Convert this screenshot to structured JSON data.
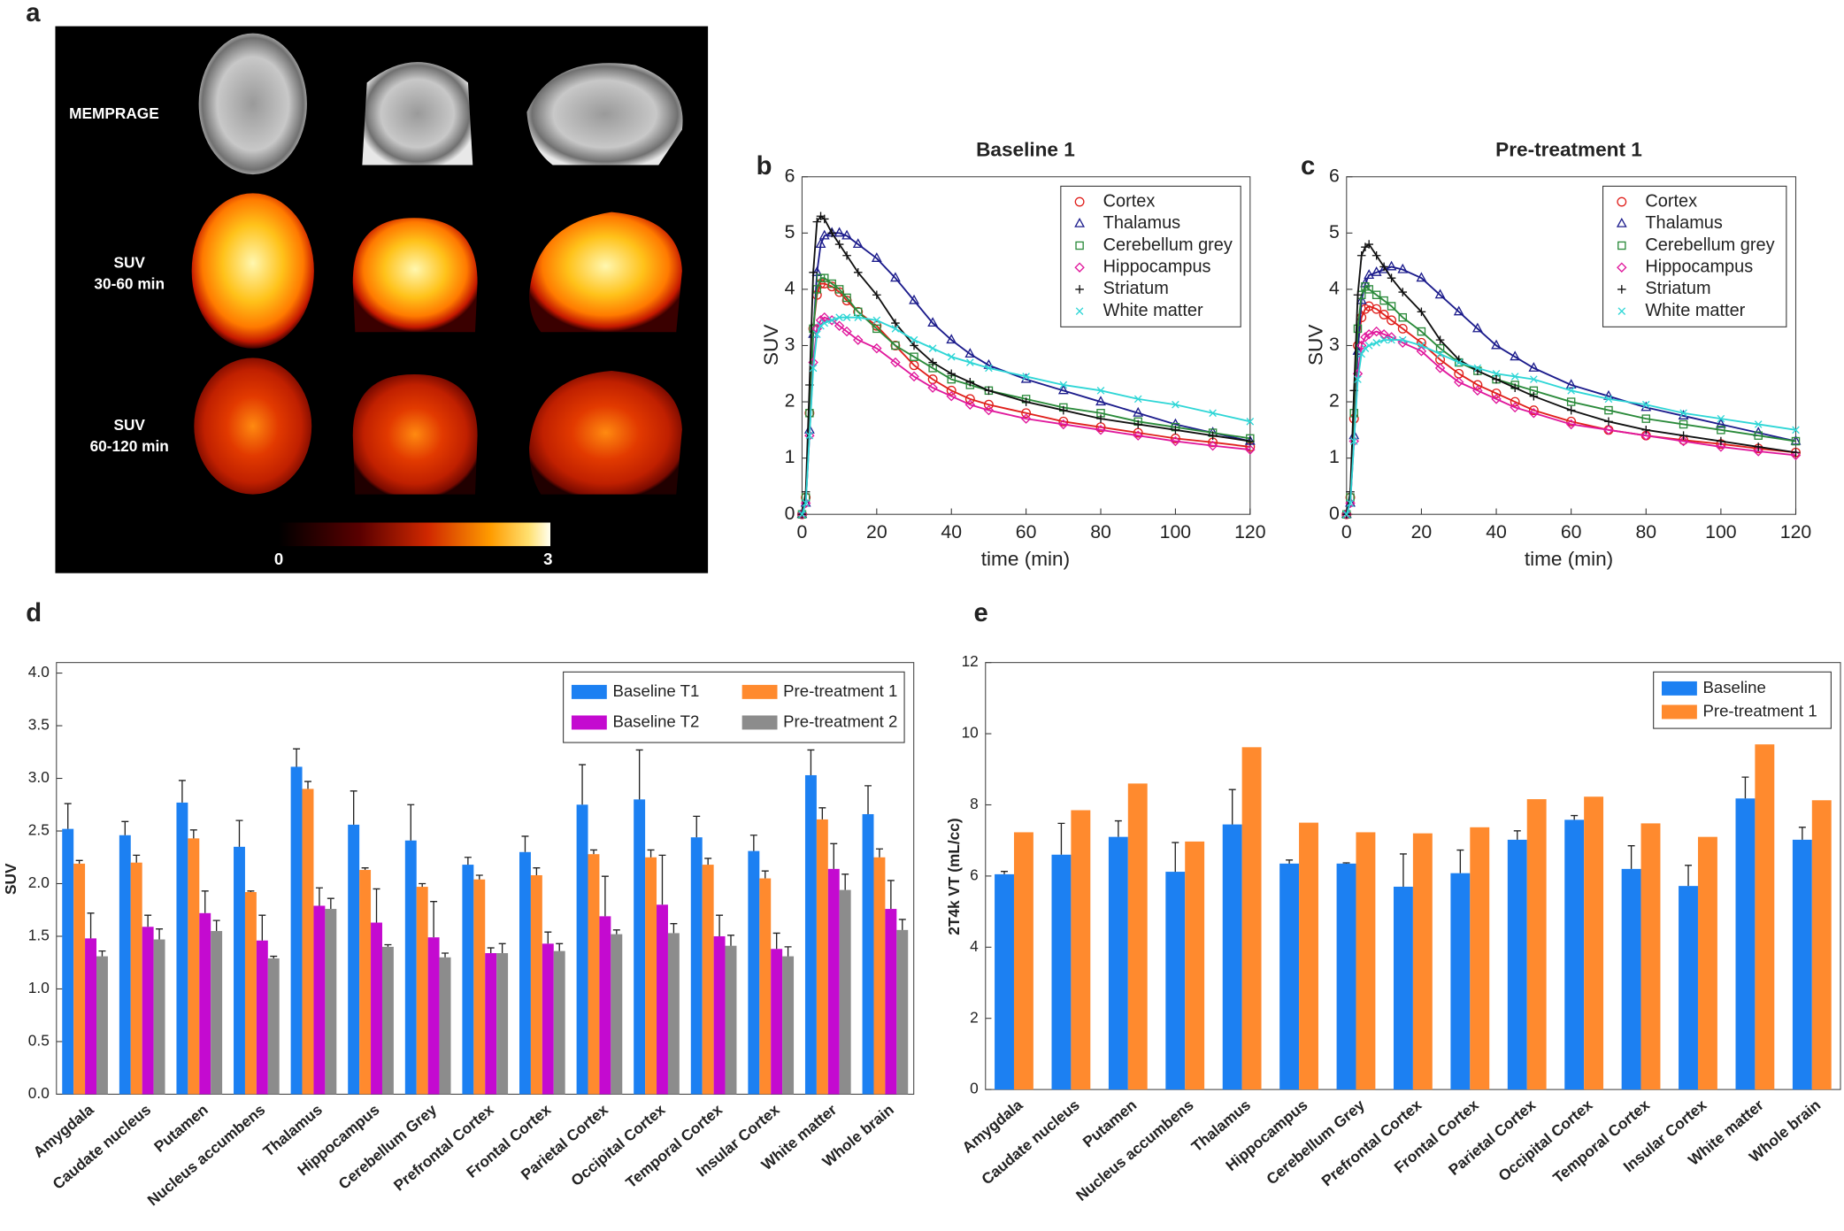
{
  "panel_a": {
    "label": "a",
    "row_labels": [
      [
        "MEMPRAGE"
      ],
      [
        "SUV",
        "30-60 min"
      ],
      [
        "SUV",
        "60-120 min"
      ]
    ],
    "colorbar": {
      "ticks": [
        0,
        3
      ]
    }
  },
  "chart_data": [
    {
      "type": "line",
      "panel": "b",
      "title": "Baseline 1",
      "x_label": "time (min)",
      "y_label": "SUV",
      "xlim": [
        0,
        120
      ],
      "ylim": [
        0,
        6
      ],
      "xticks": [
        0,
        20,
        40,
        60,
        80,
        100,
        120
      ],
      "yticks": [
        0,
        1,
        2,
        3,
        4,
        5,
        6
      ],
      "legend": "upper right",
      "x": [
        0,
        1,
        2,
        3,
        4,
        5,
        6,
        8,
        10,
        12,
        15,
        20,
        25,
        30,
        35,
        40,
        45,
        50,
        60,
        70,
        80,
        90,
        100,
        110,
        120
      ],
      "series": [
        {
          "name": "Cortex",
          "color": "#e0201c",
          "marker": "circle",
          "values": [
            0,
            0.3,
            1.8,
            3.3,
            3.9,
            4.1,
            4.1,
            4.05,
            3.95,
            3.8,
            3.6,
            3.35,
            3.0,
            2.65,
            2.4,
            2.2,
            2.05,
            1.95,
            1.8,
            1.65,
            1.55,
            1.45,
            1.35,
            1.28,
            1.2
          ]
        },
        {
          "name": "Thalamus",
          "color": "#1c1c8c",
          "marker": "triangle",
          "values": [
            0,
            0.2,
            1.5,
            3.2,
            4.3,
            4.8,
            4.95,
            5.0,
            5.0,
            4.95,
            4.8,
            4.55,
            4.2,
            3.8,
            3.4,
            3.1,
            2.85,
            2.65,
            2.4,
            2.2,
            2.0,
            1.8,
            1.6,
            1.45,
            1.3
          ]
        },
        {
          "name": "Cerebellum grey",
          "color": "#2a8a3a",
          "marker": "square",
          "values": [
            0,
            0.3,
            1.8,
            3.3,
            4.0,
            4.2,
            4.2,
            4.1,
            4.0,
            3.85,
            3.6,
            3.3,
            3.0,
            2.8,
            2.6,
            2.4,
            2.3,
            2.2,
            2.05,
            1.9,
            1.8,
            1.65,
            1.55,
            1.45,
            1.35
          ]
        },
        {
          "name": "Hippocampus",
          "color": "#e0189c",
          "marker": "diamond",
          "values": [
            0,
            0.2,
            1.4,
            2.7,
            3.3,
            3.45,
            3.5,
            3.45,
            3.35,
            3.25,
            3.1,
            2.95,
            2.7,
            2.45,
            2.25,
            2.1,
            1.95,
            1.85,
            1.7,
            1.6,
            1.5,
            1.4,
            1.3,
            1.22,
            1.15
          ]
        },
        {
          "name": "Striatum",
          "color": "#111111",
          "marker": "plus",
          "values": [
            0,
            0.4,
            2.3,
            4.3,
            5.2,
            5.3,
            5.25,
            5.0,
            4.8,
            4.6,
            4.3,
            3.9,
            3.4,
            3.0,
            2.7,
            2.5,
            2.35,
            2.2,
            2.0,
            1.85,
            1.7,
            1.6,
            1.5,
            1.4,
            1.3
          ]
        },
        {
          "name": "White matter",
          "color": "#2ed6d6",
          "marker": "cross",
          "values": [
            0,
            0.2,
            1.4,
            2.6,
            3.2,
            3.35,
            3.4,
            3.45,
            3.5,
            3.5,
            3.5,
            3.45,
            3.3,
            3.1,
            2.95,
            2.8,
            2.7,
            2.6,
            2.45,
            2.3,
            2.2,
            2.05,
            1.95,
            1.8,
            1.65
          ]
        }
      ]
    },
    {
      "type": "line",
      "panel": "c",
      "title": "Pre-treatment 1",
      "x_label": "time (min)",
      "y_label": "SUV",
      "xlim": [
        0,
        120
      ],
      "ylim": [
        0,
        6
      ],
      "xticks": [
        0,
        20,
        40,
        60,
        80,
        100,
        120
      ],
      "yticks": [
        0,
        1,
        2,
        3,
        4,
        5,
        6
      ],
      "legend": "upper right",
      "x": [
        0,
        1,
        2,
        3,
        4,
        5,
        6,
        8,
        10,
        12,
        15,
        20,
        25,
        30,
        35,
        40,
        45,
        50,
        60,
        70,
        80,
        90,
        100,
        110,
        120
      ],
      "series": [
        {
          "name": "Cortex",
          "color": "#e0201c",
          "marker": "circle",
          "values": [
            0,
            0.3,
            1.7,
            3.0,
            3.5,
            3.65,
            3.7,
            3.65,
            3.55,
            3.45,
            3.3,
            3.05,
            2.75,
            2.5,
            2.3,
            2.15,
            2.0,
            1.85,
            1.65,
            1.5,
            1.4,
            1.32,
            1.25,
            1.17,
            1.1
          ]
        },
        {
          "name": "Thalamus",
          "color": "#1c1c8c",
          "marker": "triangle",
          "values": [
            0,
            0.2,
            1.4,
            2.9,
            3.8,
            4.1,
            4.25,
            4.3,
            4.35,
            4.4,
            4.35,
            4.2,
            3.9,
            3.6,
            3.3,
            3.0,
            2.8,
            2.6,
            2.3,
            2.1,
            1.9,
            1.75,
            1.6,
            1.45,
            1.3
          ]
        },
        {
          "name": "Cerebellum grey",
          "color": "#2a8a3a",
          "marker": "square",
          "values": [
            0,
            0.3,
            1.8,
            3.3,
            3.9,
            4.05,
            4.0,
            3.9,
            3.8,
            3.7,
            3.5,
            3.25,
            2.95,
            2.7,
            2.55,
            2.4,
            2.3,
            2.2,
            2.0,
            1.85,
            1.7,
            1.6,
            1.5,
            1.4,
            1.3
          ]
        },
        {
          "name": "Hippocampus",
          "color": "#e0189c",
          "marker": "diamond",
          "values": [
            0,
            0.2,
            1.3,
            2.5,
            3.0,
            3.15,
            3.2,
            3.25,
            3.2,
            3.15,
            3.05,
            2.9,
            2.6,
            2.35,
            2.2,
            2.05,
            1.9,
            1.8,
            1.6,
            1.5,
            1.4,
            1.3,
            1.2,
            1.12,
            1.05
          ]
        },
        {
          "name": "Striatum",
          "color": "#111111",
          "marker": "plus",
          "values": [
            0,
            0.4,
            2.2,
            3.9,
            4.6,
            4.75,
            4.8,
            4.6,
            4.4,
            4.2,
            3.95,
            3.6,
            3.1,
            2.75,
            2.55,
            2.4,
            2.25,
            2.1,
            1.85,
            1.65,
            1.5,
            1.4,
            1.3,
            1.2,
            1.1
          ]
        },
        {
          "name": "White matter",
          "color": "#2ed6d6",
          "marker": "cross",
          "values": [
            0,
            0.2,
            1.3,
            2.4,
            2.85,
            2.95,
            3.0,
            3.05,
            3.1,
            3.1,
            3.1,
            3.0,
            2.85,
            2.7,
            2.6,
            2.5,
            2.45,
            2.4,
            2.2,
            2.05,
            1.95,
            1.8,
            1.7,
            1.6,
            1.5
          ]
        }
      ]
    },
    {
      "type": "bar",
      "panel": "d",
      "y_label": "SUV",
      "ylim": [
        0,
        4.1
      ],
      "yticks": [
        {
          "value": 0,
          "label": "0.0"
        },
        {
          "value": 0.5,
          "label": "0.5"
        },
        {
          "value": 1,
          "label": "1.0"
        },
        {
          "value": 1.5,
          "label": "1.5"
        },
        {
          "value": 2,
          "label": "2.0"
        },
        {
          "value": 2.5,
          "label": "2.5"
        },
        {
          "value": 3,
          "label": "3.0"
        },
        {
          "value": 3.5,
          "label": "3.5"
        },
        {
          "value": 4,
          "label": "4.0"
        }
      ],
      "legend": "upper right",
      "categories": [
        "Amygdala",
        "Caudate nucleus",
        "Putamen",
        "Nucleus accumbens",
        "Thalamus",
        "Hippocampus",
        "Cerebellum Grey",
        "Prefrontal Cortex",
        "Frontal Cortex",
        "Parietal Cortex",
        "Occipital Cortex",
        "Temporal Cortex",
        "Insular Cortex",
        "White matter",
        "Whole brain"
      ],
      "series": [
        {
          "name": "Baseline T1",
          "color": "#1c80f2",
          "values": [
            2.52,
            2.46,
            2.77,
            2.35,
            3.11,
            2.56,
            2.41,
            2.18,
            2.3,
            2.75,
            2.8,
            2.44,
            2.31,
            3.03,
            2.66
          ],
          "errors": [
            0.24,
            0.13,
            0.21,
            0.25,
            0.17,
            0.32,
            0.34,
            0.07,
            0.15,
            0.38,
            0.47,
            0.2,
            0.15,
            0.24,
            0.27
          ]
        },
        {
          "name": "Pre-treatment 1",
          "color": "#ff8a2e",
          "values": [
            2.19,
            2.2,
            2.43,
            1.92,
            2.9,
            2.13,
            1.97,
            2.04,
            2.08,
            2.28,
            2.25,
            2.18,
            2.05,
            2.61,
            2.25
          ],
          "errors": [
            0.03,
            0.07,
            0.08,
            0.01,
            0.07,
            0.02,
            0.03,
            0.04,
            0.07,
            0.04,
            0.07,
            0.06,
            0.07,
            0.11,
            0.08
          ]
        },
        {
          "name": "Baseline T2",
          "color": "#c40ad0",
          "values": [
            1.48,
            1.59,
            1.72,
            1.46,
            1.79,
            1.63,
            1.49,
            1.34,
            1.43,
            1.69,
            1.8,
            1.5,
            1.38,
            2.14,
            1.76
          ],
          "errors": [
            0.24,
            0.11,
            0.21,
            0.24,
            0.17,
            0.32,
            0.34,
            0.05,
            0.11,
            0.38,
            0.47,
            0.2,
            0.15,
            0.24,
            0.27
          ]
        },
        {
          "name": "Pre-treatment 2",
          "color": "#8c8c8c",
          "values": [
            1.31,
            1.47,
            1.55,
            1.29,
            1.76,
            1.4,
            1.3,
            1.34,
            1.36,
            1.52,
            1.53,
            1.41,
            1.31,
            1.94,
            1.56
          ],
          "errors": [
            0.05,
            0.1,
            0.1,
            0.02,
            0.1,
            0.02,
            0.04,
            0.09,
            0.07,
            0.04,
            0.09,
            0.1,
            0.09,
            0.15,
            0.1
          ]
        }
      ]
    },
    {
      "type": "bar",
      "panel": "e",
      "y_label": "2T4k VT (mL/cc)",
      "ylim": [
        0,
        12
      ],
      "yticks": [
        0,
        2,
        4,
        6,
        8,
        10,
        12
      ],
      "legend": "upper right",
      "categories": [
        "Amygdala",
        "Caudate nucleus",
        "Putamen",
        "Nucleus accumbens",
        "Thalamus",
        "Hippocampus",
        "Cerebellum Grey",
        "Prefrontal Cortex",
        "Frontal Cortex",
        "Parietal Cortex",
        "Occipital Cortex",
        "Temporal Cortex",
        "Insular Cortex",
        "White matter",
        "Whole brain"
      ],
      "series": [
        {
          "name": "Baseline",
          "color": "#1c80f2",
          "values": [
            6.05,
            6.6,
            7.1,
            6.12,
            7.45,
            6.35,
            6.35,
            5.7,
            6.08,
            7.02,
            7.58,
            6.2,
            5.72,
            8.18,
            7.02
          ],
          "errors": [
            0.08,
            0.88,
            0.45,
            0.82,
            0.98,
            0.1,
            0.02,
            0.92,
            0.65,
            0.25,
            0.12,
            0.65,
            0.58,
            0.6,
            0.35
          ]
        },
        {
          "name": "Pre-treatment 1",
          "color": "#ff8a2e",
          "values": [
            7.23,
            7.85,
            8.6,
            6.97,
            9.62,
            7.5,
            7.23,
            7.2,
            7.37,
            8.16,
            8.23,
            7.48,
            7.1,
            9.7,
            8.13
          ]
        }
      ]
    }
  ]
}
